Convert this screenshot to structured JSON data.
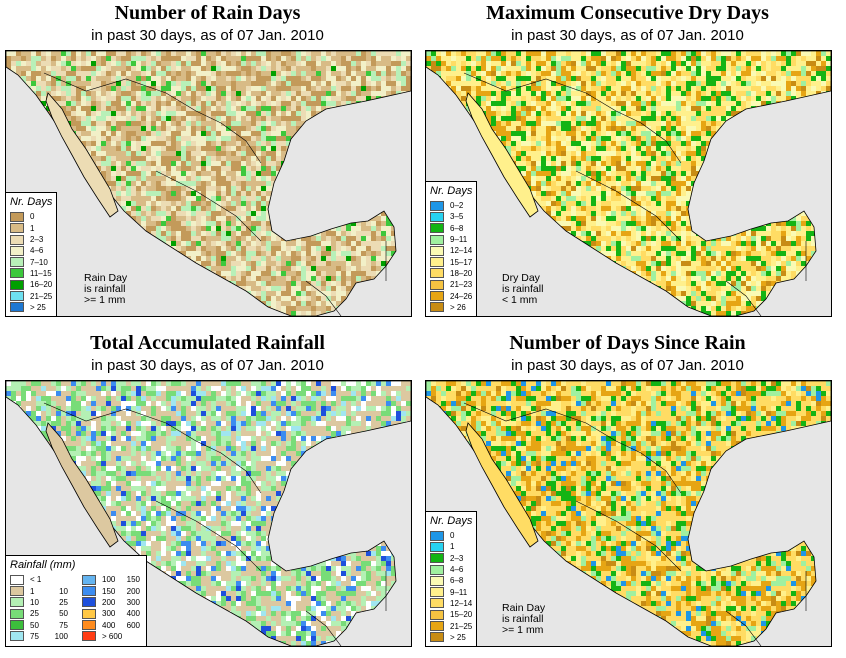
{
  "panels": {
    "rain_days": {
      "title": "Number of Rain Days",
      "subtitle": "in past 30 days, as of  07 Jan. 2010",
      "legend_title": "Nr. Days",
      "legend": [
        {
          "label": "0",
          "color": "#c39a5a"
        },
        {
          "label": "1",
          "color": "#d8bb86"
        },
        {
          "label": "2–3",
          "color": "#ecdcb4"
        },
        {
          "label": "4–6",
          "color": "#f2f0c8"
        },
        {
          "label": "7–10",
          "color": "#b8f0b8"
        },
        {
          "label": "11–15",
          "color": "#3cc83c"
        },
        {
          "label": "16–20",
          "color": "#00a000"
        },
        {
          "label": "21–25",
          "color": "#6ee0f0"
        },
        {
          "label": "> 25",
          "color": "#1e78d2"
        }
      ],
      "note": [
        "Rain Day",
        "is rainfall",
        ">= 1 mm"
      ]
    },
    "dry_days": {
      "title": "Maximum Consecutive Dry Days",
      "subtitle": "in past 30 days, as of  07 Jan. 2010",
      "legend_title": "Nr. Days",
      "legend": [
        {
          "label": "0–2",
          "color": "#1e96e6"
        },
        {
          "label": "3–5",
          "color": "#28d2f0"
        },
        {
          "label": "6–8",
          "color": "#14b414"
        },
        {
          "label": "9–11",
          "color": "#a0f0a0"
        },
        {
          "label": "12–14",
          "color": "#fafab4"
        },
        {
          "label": "15–17",
          "color": "#fff08c"
        },
        {
          "label": "18–20",
          "color": "#ffdc64"
        },
        {
          "label": "21–23",
          "color": "#f5c341"
        },
        {
          "label": "24–26",
          "color": "#e6a514"
        },
        {
          "label": "> 26",
          "color": "#c88c14"
        }
      ],
      "note": [
        "Dry Day",
        "is rainfall",
        "< 1 mm"
      ]
    },
    "rainfall": {
      "title": "Total Accumulated Rainfall",
      "subtitle": "in past 30 days, as of  07 Jan. 2010",
      "legend_title": "Rainfall (mm)",
      "legend_left": [
        {
          "lo": "< 1",
          "hi": "",
          "color": "#ffffff"
        },
        {
          "lo": "1",
          "hi": "10",
          "color": "#dcc8a0"
        },
        {
          "lo": "10",
          "hi": "25",
          "color": "#b4f0b4"
        },
        {
          "lo": "25",
          "hi": "50",
          "color": "#78dc78"
        },
        {
          "lo": "50",
          "hi": "75",
          "color": "#3cbe3c"
        },
        {
          "lo": "75",
          "hi": "100",
          "color": "#a0e6f0"
        }
      ],
      "legend_right": [
        {
          "lo": "100",
          "hi": "150",
          "color": "#64b4f0"
        },
        {
          "lo": "150",
          "hi": "200",
          "color": "#3c8cf0"
        },
        {
          "lo": "200",
          "hi": "300",
          "color": "#1e50dc"
        },
        {
          "lo": "300",
          "hi": "400",
          "color": "#ffc846"
        },
        {
          "lo": "400",
          "hi": "600",
          "color": "#ff8c1e"
        },
        {
          "lo": "> 600",
          "hi": "",
          "color": "#ff3c14"
        }
      ]
    },
    "since_rain": {
      "title": "Number of Days Since Rain",
      "subtitle": "in past 30 days, as of  07 Jan. 2010",
      "legend_title": "Nr. Days",
      "legend": [
        {
          "label": "0",
          "color": "#1e96e6"
        },
        {
          "label": "1",
          "color": "#28d2f0"
        },
        {
          "label": "2–3",
          "color": "#14b414"
        },
        {
          "label": "4–6",
          "color": "#a0f0a0"
        },
        {
          "label": "6–8",
          "color": "#fafab4"
        },
        {
          "label": "9–11",
          "color": "#fff08c"
        },
        {
          "label": "12–14",
          "color": "#ffdc64"
        },
        {
          "label": "15–20",
          "color": "#f5c341"
        },
        {
          "label": "21–25",
          "color": "#e6a514"
        },
        {
          "label": "> 25",
          "color": "#c88c14"
        }
      ],
      "note": [
        "Rain Day",
        "is rainfall",
        ">= 1 mm"
      ]
    }
  },
  "colors": {
    "water": "#e6e6e6",
    "border": "#000000"
  }
}
